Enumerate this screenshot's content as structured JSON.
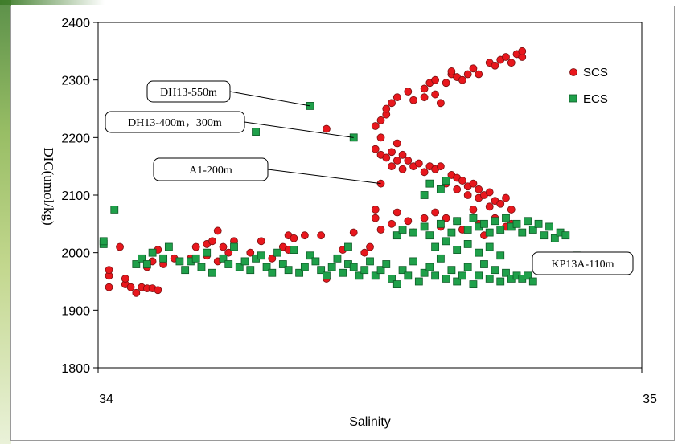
{
  "chart_data": {
    "type": "scatter",
    "title": "",
    "xlabel": "Salinity",
    "ylabel": "DIC(umol/kg)",
    "xlim": [
      34,
      35
    ],
    "ylim": [
      1800,
      2400
    ],
    "xticks": [
      "34",
      "35"
    ],
    "yticks": [
      "1800",
      "1900",
      "2000",
      "2100",
      "2200",
      "2300",
      "2400"
    ],
    "legend_position": "top-right",
    "series": [
      {
        "name": "SCS",
        "marker": "circle",
        "color": "#e8171d",
        "points": [
          [
            34.02,
            1940
          ],
          [
            34.02,
            1960
          ],
          [
            34.02,
            1970
          ],
          [
            34.04,
            2010
          ],
          [
            34.05,
            1945
          ],
          [
            34.05,
            1955
          ],
          [
            34.06,
            1940
          ],
          [
            34.07,
            1930
          ],
          [
            34.08,
            1940
          ],
          [
            34.09,
            1975
          ],
          [
            34.09,
            1938
          ],
          [
            34.1,
            1938
          ],
          [
            34.1,
            1985
          ],
          [
            34.11,
            2005
          ],
          [
            34.11,
            1935
          ],
          [
            34.12,
            1980
          ],
          [
            34.14,
            1990
          ],
          [
            34.17,
            1990
          ],
          [
            34.18,
            2010
          ],
          [
            34.2,
            1995
          ],
          [
            34.2,
            2015
          ],
          [
            34.21,
            2020
          ],
          [
            34.22,
            1985
          ],
          [
            34.22,
            2038
          ],
          [
            34.23,
            2010
          ],
          [
            34.24,
            2000
          ],
          [
            34.25,
            2020
          ],
          [
            34.28,
            2000
          ],
          [
            34.3,
            2020
          ],
          [
            34.32,
            1990
          ],
          [
            34.34,
            2010
          ],
          [
            34.35,
            2030
          ],
          [
            34.35,
            2005
          ],
          [
            34.36,
            2025
          ],
          [
            34.38,
            2030
          ],
          [
            34.41,
            2030
          ],
          [
            34.42,
            1955
          ],
          [
            34.45,
            2005
          ],
          [
            34.47,
            2035
          ],
          [
            34.49,
            2000
          ],
          [
            34.5,
            2010
          ],
          [
            34.51,
            2220
          ],
          [
            34.52,
            2200
          ],
          [
            34.52,
            2230
          ],
          [
            34.53,
            2240
          ],
          [
            34.53,
            2250
          ],
          [
            34.54,
            2260
          ],
          [
            34.55,
            2270
          ],
          [
            34.57,
            2280
          ],
          [
            34.58,
            2265
          ],
          [
            34.6,
            2270
          ],
          [
            34.6,
            2285
          ],
          [
            34.61,
            2295
          ],
          [
            34.62,
            2275
          ],
          [
            34.62,
            2300
          ],
          [
            34.63,
            2260
          ],
          [
            34.64,
            2295
          ],
          [
            34.65,
            2310
          ],
          [
            34.65,
            2315
          ],
          [
            34.66,
            2305
          ],
          [
            34.67,
            2300
          ],
          [
            34.68,
            2310
          ],
          [
            34.69,
            2320
          ],
          [
            34.7,
            2310
          ],
          [
            34.72,
            2330
          ],
          [
            34.73,
            2325
          ],
          [
            34.74,
            2335
          ],
          [
            34.75,
            2340
          ],
          [
            34.76,
            2330
          ],
          [
            34.77,
            2345
          ],
          [
            34.78,
            2340
          ],
          [
            34.78,
            2350
          ],
          [
            34.51,
            2180
          ],
          [
            34.52,
            2170
          ],
          [
            34.53,
            2165
          ],
          [
            34.54,
            2175
          ],
          [
            34.54,
            2150
          ],
          [
            34.55,
            2160
          ],
          [
            34.55,
            2190
          ],
          [
            34.56,
            2170
          ],
          [
            34.56,
            2145
          ],
          [
            34.57,
            2160
          ],
          [
            34.58,
            2150
          ],
          [
            34.59,
            2155
          ],
          [
            34.6,
            2140
          ],
          [
            34.61,
            2150
          ],
          [
            34.62,
            2145
          ],
          [
            34.63,
            2150
          ],
          [
            34.64,
            2120
          ],
          [
            34.65,
            2135
          ],
          [
            34.66,
            2130
          ],
          [
            34.66,
            2110
          ],
          [
            34.67,
            2125
          ],
          [
            34.68,
            2115
          ],
          [
            34.68,
            2100
          ],
          [
            34.69,
            2120
          ],
          [
            34.7,
            2110
          ],
          [
            34.7,
            2095
          ],
          [
            34.71,
            2100
          ],
          [
            34.72,
            2080
          ],
          [
            34.72,
            2105
          ],
          [
            34.73,
            2090
          ],
          [
            34.74,
            2085
          ],
          [
            34.75,
            2095
          ],
          [
            34.76,
            2075
          ],
          [
            34.51,
            2060
          ],
          [
            34.51,
            2075
          ],
          [
            34.52,
            2040
          ],
          [
            34.54,
            2050
          ],
          [
            34.55,
            2070
          ],
          [
            34.57,
            2055
          ],
          [
            34.58,
            2035
          ],
          [
            34.6,
            2060
          ],
          [
            34.62,
            2070
          ],
          [
            34.63,
            2045
          ],
          [
            34.64,
            2060
          ],
          [
            34.66,
            2055
          ],
          [
            34.67,
            2040
          ],
          [
            34.69,
            2075
          ],
          [
            34.7,
            2050
          ],
          [
            34.71,
            2030
          ],
          [
            34.73,
            2060
          ],
          [
            34.75,
            2045
          ],
          [
            34.76,
            2050
          ],
          [
            34.42,
            2215
          ],
          [
            34.52,
            2120
          ]
        ]
      },
      {
        "name": "ECS",
        "marker": "square",
        "color": "#1fa04a",
        "points": [
          [
            34.01,
            2015
          ],
          [
            34.01,
            2020
          ],
          [
            34.03,
            2075
          ],
          [
            34.07,
            1980
          ],
          [
            34.08,
            1990
          ],
          [
            34.09,
            1980
          ],
          [
            34.1,
            2000
          ],
          [
            34.12,
            1990
          ],
          [
            34.13,
            2010
          ],
          [
            34.15,
            1985
          ],
          [
            34.16,
            1970
          ],
          [
            34.17,
            1985
          ],
          [
            34.18,
            1990
          ],
          [
            34.19,
            1975
          ],
          [
            34.2,
            2000
          ],
          [
            34.21,
            1965
          ],
          [
            34.23,
            1990
          ],
          [
            34.24,
            1980
          ],
          [
            34.25,
            2010
          ],
          [
            34.26,
            1975
          ],
          [
            34.27,
            1985
          ],
          [
            34.28,
            1970
          ],
          [
            34.29,
            1990
          ],
          [
            34.3,
            1995
          ],
          [
            34.31,
            1975
          ],
          [
            34.32,
            1965
          ],
          [
            34.33,
            2000
          ],
          [
            34.34,
            1980
          ],
          [
            34.35,
            1970
          ],
          [
            34.36,
            2005
          ],
          [
            34.37,
            1965
          ],
          [
            34.38,
            1975
          ],
          [
            34.39,
            1995
          ],
          [
            34.4,
            1985
          ],
          [
            34.41,
            1970
          ],
          [
            34.42,
            1960
          ],
          [
            34.43,
            1975
          ],
          [
            34.44,
            1990
          ],
          [
            34.45,
            1965
          ],
          [
            34.46,
            2010
          ],
          [
            34.46,
            1980
          ],
          [
            34.47,
            1975
          ],
          [
            34.48,
            1960
          ],
          [
            34.49,
            1970
          ],
          [
            34.5,
            1985
          ],
          [
            34.51,
            1960
          ],
          [
            34.52,
            1970
          ],
          [
            34.53,
            1980
          ],
          [
            34.54,
            1955
          ],
          [
            34.55,
            1945
          ],
          [
            34.56,
            1970
          ],
          [
            34.57,
            1960
          ],
          [
            34.58,
            1985
          ],
          [
            34.59,
            1950
          ],
          [
            34.6,
            1965
          ],
          [
            34.61,
            1975
          ],
          [
            34.62,
            1960
          ],
          [
            34.63,
            1990
          ],
          [
            34.64,
            1955
          ],
          [
            34.65,
            1970
          ],
          [
            34.66,
            1950
          ],
          [
            34.67,
            1960
          ],
          [
            34.68,
            1975
          ],
          [
            34.69,
            1945
          ],
          [
            34.7,
            1960
          ],
          [
            34.71,
            1980
          ],
          [
            34.72,
            1955
          ],
          [
            34.73,
            1970
          ],
          [
            34.74,
            1950
          ],
          [
            34.75,
            1965
          ],
          [
            34.76,
            1955
          ],
          [
            34.77,
            1960
          ],
          [
            34.78,
            1955
          ],
          [
            34.79,
            1960
          ],
          [
            34.8,
            1950
          ],
          [
            34.55,
            2030
          ],
          [
            34.56,
            2040
          ],
          [
            34.58,
            2035
          ],
          [
            34.6,
            2045
          ],
          [
            34.61,
            2030
          ],
          [
            34.63,
            2050
          ],
          [
            34.65,
            2035
          ],
          [
            34.66,
            2055
          ],
          [
            34.68,
            2040
          ],
          [
            34.69,
            2060
          ],
          [
            34.7,
            2045
          ],
          [
            34.71,
            2050
          ],
          [
            34.72,
            2035
          ],
          [
            34.73,
            2055
          ],
          [
            34.74,
            2040
          ],
          [
            34.75,
            2060
          ],
          [
            34.76,
            2045
          ],
          [
            34.77,
            2050
          ],
          [
            34.78,
            2035
          ],
          [
            34.79,
            2055
          ],
          [
            34.8,
            2040
          ],
          [
            34.81,
            2050
          ],
          [
            34.82,
            2030
          ],
          [
            34.83,
            2045
          ],
          [
            34.84,
            2025
          ],
          [
            34.85,
            2035
          ],
          [
            34.86,
            2030
          ],
          [
            34.62,
            2010
          ],
          [
            34.64,
            2020
          ],
          [
            34.66,
            2005
          ],
          [
            34.68,
            2015
          ],
          [
            34.7,
            2000
          ],
          [
            34.72,
            2010
          ],
          [
            34.74,
            1995
          ],
          [
            34.6,
            2100
          ],
          [
            34.61,
            2120
          ],
          [
            34.63,
            2110
          ],
          [
            34.64,
            2125
          ],
          [
            34.29,
            2210
          ],
          [
            34.39,
            2255
          ],
          [
            34.47,
            2200
          ],
          [
            34.88,
            1995
          ]
        ]
      }
    ],
    "annotations": [
      {
        "text": "DH13-550m",
        "target": [
          34.39,
          2255
        ]
      },
      {
        "text": "DH13-400m，300m",
        "target": [
          34.47,
          2200
        ]
      },
      {
        "text": "A1-200m",
        "target": [
          34.52,
          2120
        ]
      },
      {
        "text": "KP13A-110m",
        "target": [
          34.88,
          1995
        ]
      }
    ]
  }
}
